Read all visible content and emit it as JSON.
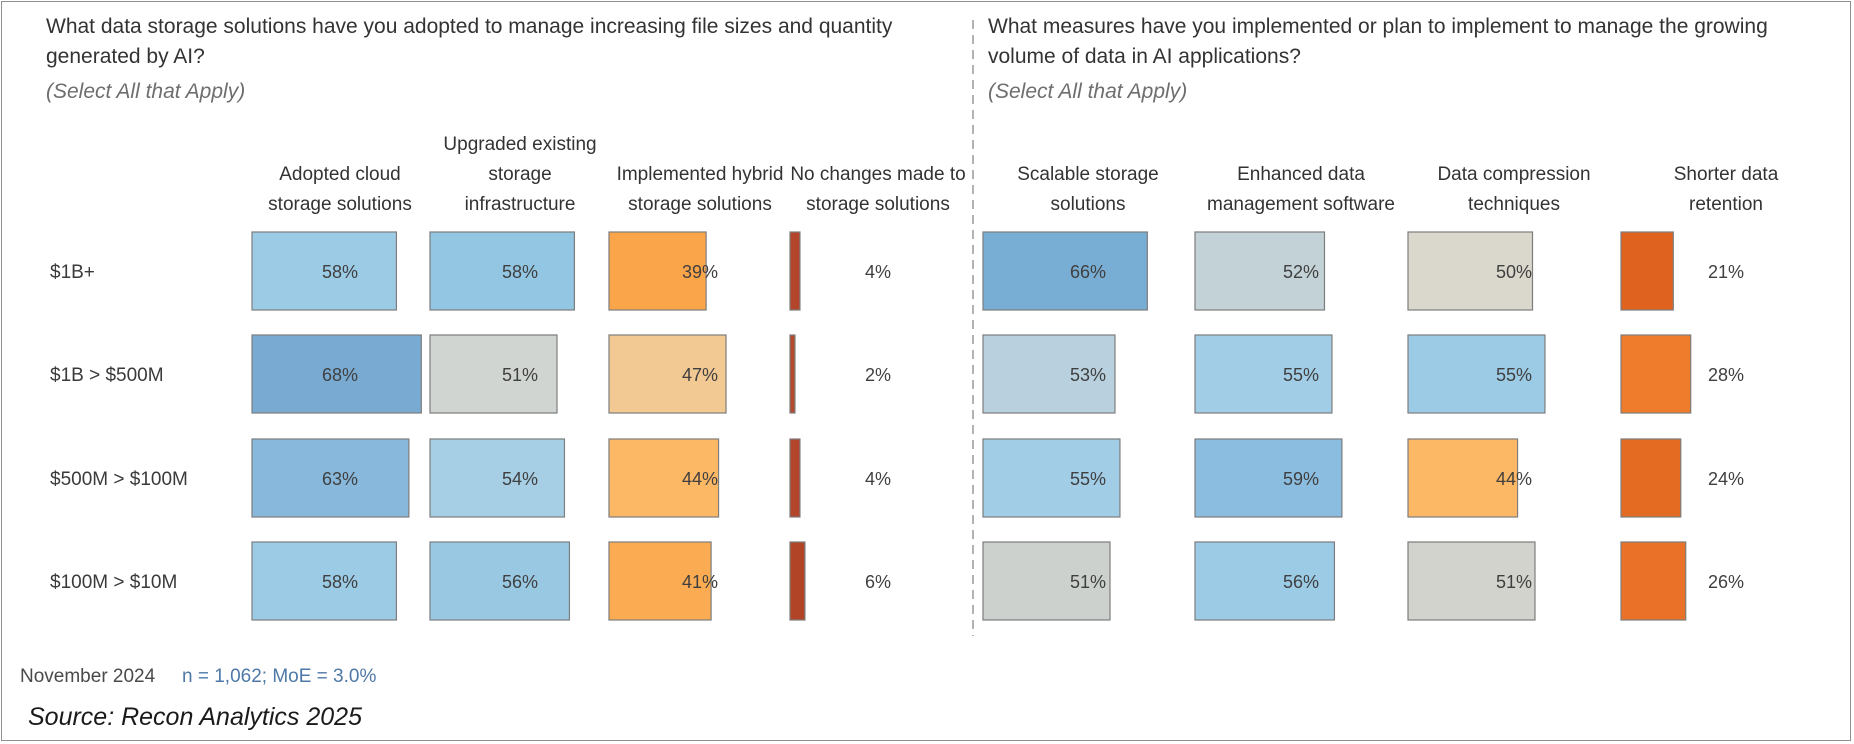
{
  "panels": [
    {
      "title": "What data storage solutions have you adopted to manage increasing file sizes and quantity generated by AI?",
      "subtitle": "(Select All that Apply)"
    },
    {
      "title": "What measures have you implemented or plan to implement to manage the growing volume of data in AI applications?",
      "subtitle": "(Select All that Apply)"
    }
  ],
  "footer": {
    "date": "November 2024",
    "stats": "n = 1,062; MoE = 3.0%",
    "source": "Source: Recon Analytics 2025"
  },
  "chart_data": [
    {
      "type": "bar",
      "title": "What data storage solutions have you adopted to manage increasing file sizes and quantity generated by AI?",
      "categories": [
        "$1B+",
        "$1B > $500M",
        "$500M > $100M",
        "$100M > $10M"
      ],
      "series": [
        {
          "name": "Adopted cloud storage solutions",
          "values": [
            58,
            68,
            63,
            58
          ],
          "colors": [
            "#9ccbe6",
            "#79aad2",
            "#88b8db",
            "#9ccbe6"
          ]
        },
        {
          "name": "Upgraded existing storage infrastructure",
          "values": [
            58,
            51,
            54,
            56
          ],
          "colors": [
            "#93c6e2",
            "#d1d5d2",
            "#a6cfe5",
            "#99c8e3"
          ]
        },
        {
          "name": "Implemented hybrid storage solutions",
          "values": [
            39,
            47,
            44,
            41
          ],
          "colors": [
            "#fba54a",
            "#f2c993",
            "#fdb866",
            "#fbac53"
          ]
        },
        {
          "name": "No changes made to storage solutions",
          "values": [
            4,
            2,
            4,
            6
          ],
          "colors": [
            "#b3452a",
            "#b34a2d",
            "#b3452a",
            "#b14326"
          ]
        }
      ],
      "value_suffix": "%"
    },
    {
      "type": "bar",
      "title": "What measures have you implemented or plan to implement to manage the growing volume of data in AI applications?",
      "categories": [
        "$1B+",
        "$1B > $500M",
        "$500M > $100M",
        "$100M > $10M"
      ],
      "series": [
        {
          "name": "Scalable storage solutions",
          "values": [
            66,
            53,
            55,
            51
          ],
          "colors": [
            "#79aed4",
            "#b9d1de",
            "#a1cde6",
            "#ccd1ce"
          ]
        },
        {
          "name": "Enhanced data management software",
          "values": [
            52,
            55,
            59,
            56
          ],
          "colors": [
            "#c3d2d7",
            "#a1cde6",
            "#8bbde0",
            "#9ccbe6"
          ]
        },
        {
          "name": "Data compression techniques",
          "values": [
            50,
            55,
            44,
            51
          ],
          "colors": [
            "#dad7cc",
            "#9ccbe6",
            "#fdb865",
            "#d3d3cd"
          ]
        },
        {
          "name": "Shorter data retention",
          "values": [
            21,
            28,
            24,
            26
          ],
          "colors": [
            "#e0621f",
            "#ef7b2c",
            "#e36b22",
            "#ea7228"
          ]
        }
      ],
      "value_suffix": "%"
    }
  ]
}
